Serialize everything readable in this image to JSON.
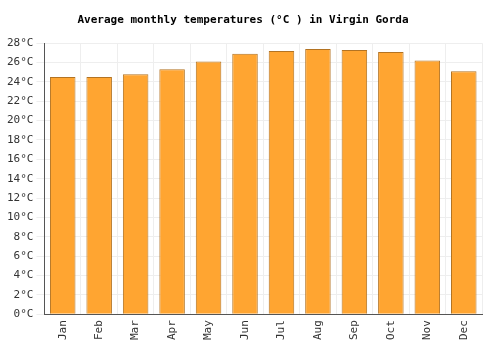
{
  "chart_data": {
    "type": "bar",
    "title": "Average monthly temperatures (°C ) in Virgin Gorda",
    "categories": [
      "Jan",
      "Feb",
      "Mar",
      "Apr",
      "May",
      "Jun",
      "Jul",
      "Aug",
      "Sep",
      "Oct",
      "Nov",
      "Dec"
    ],
    "values": [
      24.5,
      24.5,
      24.8,
      25.3,
      26.1,
      26.9,
      27.2,
      27.4,
      27.3,
      27.1,
      26.2,
      25.1
    ],
    "color": "#ffa531",
    "ylim": [
      0,
      28
    ],
    "yticks": [
      {
        "value": 0,
        "label": "0°C"
      },
      {
        "value": 2,
        "label": "2°C"
      },
      {
        "value": 4,
        "label": "4°C"
      },
      {
        "value": 6,
        "label": "6°C"
      },
      {
        "value": 8,
        "label": "8°C"
      },
      {
        "value": 10,
        "label": "10°C"
      },
      {
        "value": 12,
        "label": "12°C"
      },
      {
        "value": 14,
        "label": "14°C"
      },
      {
        "value": 16,
        "label": "16°C"
      },
      {
        "value": 18,
        "label": "18°C"
      },
      {
        "value": 20,
        "label": "20°C"
      },
      {
        "value": 22,
        "label": "22°C"
      },
      {
        "value": 24,
        "label": "24°C"
      },
      {
        "value": 26,
        "label": "26°C"
      },
      {
        "value": 28,
        "label": "28°C"
      }
    ],
    "grid": true
  }
}
